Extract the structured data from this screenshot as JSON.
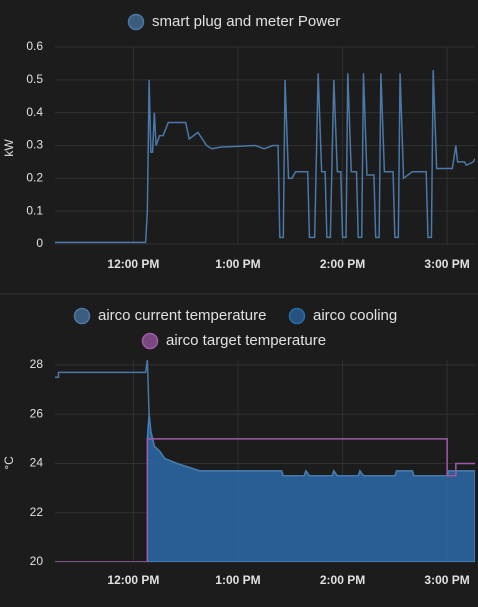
{
  "chart_data": [
    {
      "type": "line",
      "ylabel": "kW",
      "grid": true,
      "xlim": [
        "11:15 AM",
        "3:16 PM"
      ],
      "xticks": [
        "12:00 PM",
        "1:00 PM",
        "2:00 PM",
        "3:00 PM"
      ],
      "ylim": [
        0,
        0.6
      ],
      "yticks": [
        0,
        0.1,
        0.2,
        0.3,
        0.4,
        0.5,
        0.6
      ],
      "series": [
        {
          "name": "smart plug and meter Power",
          "color": "#4a78a8",
          "x": [
            "11:15 AM",
            "12:07 PM",
            "12:08 PM",
            "12:09 PM",
            "12:10 PM",
            "12:11 PM",
            "12:12 PM",
            "12:13 PM",
            "12:15 PM",
            "12:17 PM",
            "12:20 PM",
            "12:30 PM",
            "12:32 PM",
            "12:37 PM",
            "12:42 PM",
            "12:45 PM",
            "12:50 PM",
            "1:10 PM",
            "1:15 PM",
            "1:20 PM",
            "1:23 PM",
            "1:24 PM",
            "1:26 PM",
            "1:27 PM",
            "1:29 PM",
            "1:31 PM",
            "1:33 PM",
            "1:40 PM",
            "1:41 PM",
            "1:44 PM",
            "1:46 PM",
            "1:48 PM",
            "1:50 PM",
            "1:51 PM",
            "1:53 PM",
            "1:55 PM",
            "1:57 PM",
            "1:59 PM",
            "2:00 PM",
            "2:02 PM",
            "2:03 PM",
            "2:05 PM",
            "2:08 PM",
            "2:09 PM",
            "2:11 PM",
            "2:12 PM",
            "2:14 PM",
            "2:18 PM",
            "2:19 PM",
            "2:21 PM",
            "2:22 PM",
            "2:24 PM",
            "2:29 PM",
            "2:30 PM",
            "2:32 PM",
            "2:33 PM",
            "2:35 PM",
            "2:40 PM",
            "2:48 PM",
            "2:49 PM",
            "2:51 PM",
            "2:52 PM",
            "2:54 PM",
            "3:03 PM",
            "3:05 PM",
            "3:06 PM",
            "3:10 PM",
            "3:11 PM",
            "3:15 PM",
            "3:16 PM"
          ],
          "values": [
            0.005,
            0.005,
            0.1,
            0.5,
            0.28,
            0.28,
            0.4,
            0.3,
            0.33,
            0.33,
            0.37,
            0.37,
            0.32,
            0.34,
            0.3,
            0.29,
            0.295,
            0.3,
            0.29,
            0.3,
            0.3,
            0.02,
            0.02,
            0.5,
            0.2,
            0.2,
            0.22,
            0.22,
            0.02,
            0.02,
            0.52,
            0.22,
            0.22,
            0.02,
            0.02,
            0.5,
            0.22,
            0.22,
            0.02,
            0.02,
            0.52,
            0.22,
            0.22,
            0.02,
            0.02,
            0.52,
            0.21,
            0.21,
            0.02,
            0.02,
            0.52,
            0.22,
            0.22,
            0.02,
            0.02,
            0.52,
            0.2,
            0.22,
            0.22,
            0.02,
            0.02,
            0.53,
            0.23,
            0.23,
            0.3,
            0.25,
            0.25,
            0.24,
            0.25,
            0.26
          ]
        }
      ]
    },
    {
      "type": "line",
      "ylabel": "°C",
      "grid": true,
      "xlim": [
        "11:15 AM",
        "3:16 PM"
      ],
      "xticks": [
        "12:00 PM",
        "1:00 PM",
        "2:00 PM",
        "3:00 PM"
      ],
      "ylim": [
        20,
        28.2
      ],
      "yticks": [
        20,
        22,
        24,
        26,
        28
      ],
      "series": [
        {
          "name": "airco current temperature",
          "color": "#4a78a8",
          "x": [
            "11:15 AM",
            "11:17 AM",
            "11:17 AM",
            "12:07 PM",
            "12:08 PM",
            "12:09 PM",
            "12:10 PM",
            "12:11 PM",
            "12:12 PM",
            "12:15 PM",
            "12:18 PM",
            "12:25 PM",
            "12:38 PM",
            "1:25 PM",
            "1:26 PM",
            "1:38 PM",
            "1:39 PM",
            "1:41 PM",
            "1:54 PM",
            "1:55 PM",
            "1:57 PM",
            "2:09 PM",
            "2:10 PM",
            "2:12 PM",
            "2:30 PM",
            "2:31 PM",
            "2:40 PM",
            "2:41 PM",
            "3:00 PM",
            "3:01 PM",
            "3:16 PM"
          ],
          "values": [
            27.5,
            27.5,
            27.7,
            27.7,
            28.2,
            26,
            25.3,
            25,
            24.7,
            24.5,
            24.2,
            24,
            23.7,
            23.7,
            23.5,
            23.5,
            23.7,
            23.5,
            23.5,
            23.7,
            23.5,
            23.5,
            23.7,
            23.5,
            23.5,
            23.7,
            23.7,
            23.5,
            23.5,
            23.7,
            23.7
          ]
        },
        {
          "name": "airco cooling",
          "color": "#2a6aa8",
          "fill": true,
          "x": [
            "11:15 AM",
            "11:17 AM",
            "11:17 AM",
            "12:07 PM",
            "12:08 PM",
            "12:09 PM",
            "12:10 PM",
            "12:11 PM",
            "12:12 PM",
            "12:15 PM",
            "12:18 PM",
            "12:25 PM",
            "12:38 PM",
            "1:25 PM",
            "1:26 PM",
            "1:38 PM",
            "1:39 PM",
            "1:41 PM",
            "1:54 PM",
            "1:55 PM",
            "1:57 PM",
            "2:09 PM",
            "2:10 PM",
            "2:12 PM",
            "2:30 PM",
            "2:31 PM",
            "2:40 PM",
            "2:41 PM",
            "3:00 PM",
            "3:01 PM",
            "3:16 PM"
          ],
          "values": [
            null,
            null,
            null,
            null,
            25,
            26,
            25.3,
            25,
            24.7,
            24.5,
            24.2,
            24,
            23.7,
            23.7,
            23.5,
            23.5,
            23.7,
            23.5,
            23.5,
            23.7,
            23.5,
            23.5,
            23.7,
            23.5,
            23.5,
            23.7,
            23.7,
            23.5,
            23.5,
            23.7,
            23.7
          ]
        },
        {
          "name": "airco target temperature",
          "color": "#a05aa8",
          "x": [
            "11:15 AM",
            "12:08 PM",
            "12:08 PM",
            "3:00 PM",
            "3:00 PM",
            "3:05 PM",
            "3:05 PM",
            "3:16 PM"
          ],
          "values": [
            20,
            20,
            25,
            25,
            23.5,
            23.5,
            24,
            24
          ]
        }
      ]
    }
  ]
}
